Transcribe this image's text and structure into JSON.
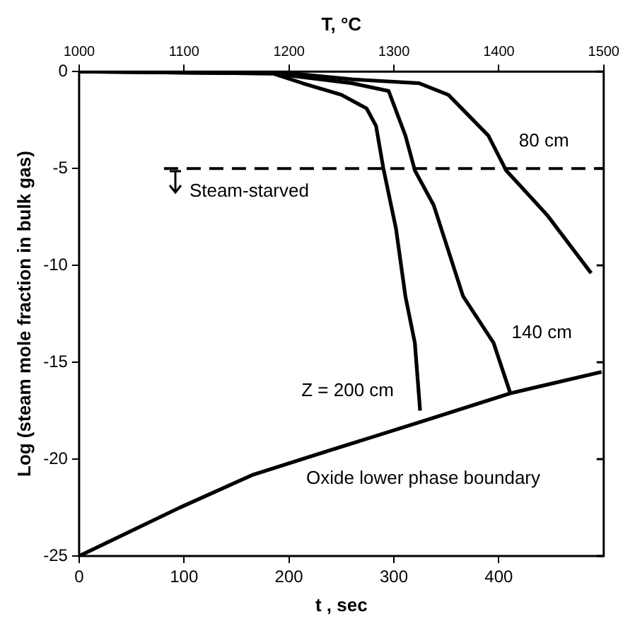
{
  "chart_data": {
    "type": "line",
    "xlabel": "t , sec",
    "x2label": "T, °C",
    "ylabel": "Log (steam mole fraction in bulk gas)",
    "xlim": [
      0,
      500
    ],
    "xticks": [
      0,
      100,
      200,
      300,
      400
    ],
    "x2lim": [
      1000,
      1500
    ],
    "x2ticks": [
      1000,
      1100,
      1200,
      1300,
      1400,
      1500
    ],
    "ylim": [
      -25,
      0
    ],
    "yticks": [
      0,
      -5,
      -10,
      -15,
      -20,
      -25
    ],
    "grid": false,
    "legend": false,
    "marker": "none",
    "line_style": "solid",
    "series": [
      {
        "name": "80 cm",
        "color": "#000000",
        "x": [
          0,
          185,
          260,
          324,
          352,
          390,
          407,
          446,
          488
        ],
        "values": [
          0,
          0,
          -0.4,
          -0.6,
          -1.2,
          -3.3,
          -5.1,
          -7.4,
          -10.4
        ]
      },
      {
        "name": "140 cm",
        "color": "#000000",
        "x": [
          0,
          185,
          260,
          295,
          311,
          320,
          338,
          366,
          395,
          411
        ],
        "values": [
          0,
          -0.1,
          -0.6,
          -1.0,
          -3.3,
          -5.1,
          -6.9,
          -11.6,
          -14,
          -16.6
        ]
      },
      {
        "name": "Z = 200 cm",
        "color": "#000000",
        "x": [
          0,
          185,
          213,
          250,
          274,
          283,
          290,
          302,
          311,
          320,
          325
        ],
        "values": [
          0,
          -0.1,
          -0.6,
          -1.2,
          -1.9,
          -2.8,
          -5.0,
          -8.1,
          -11.6,
          -14,
          -17.5
        ]
      },
      {
        "name": "Oxide lower phase boundary",
        "color": "#000000",
        "x": [
          0,
          96,
          166,
          236,
          330,
          411,
          498
        ],
        "values": [
          -25,
          -22.5,
          -20.8,
          -19.6,
          -18.0,
          -16.6,
          -15.5
        ]
      }
    ],
    "annotations": [
      "Steam-starved"
    ],
    "ref_lines": [
      {
        "axis": "y",
        "value": -5,
        "line_style": "dashed",
        "color": "#000000"
      }
    ]
  }
}
